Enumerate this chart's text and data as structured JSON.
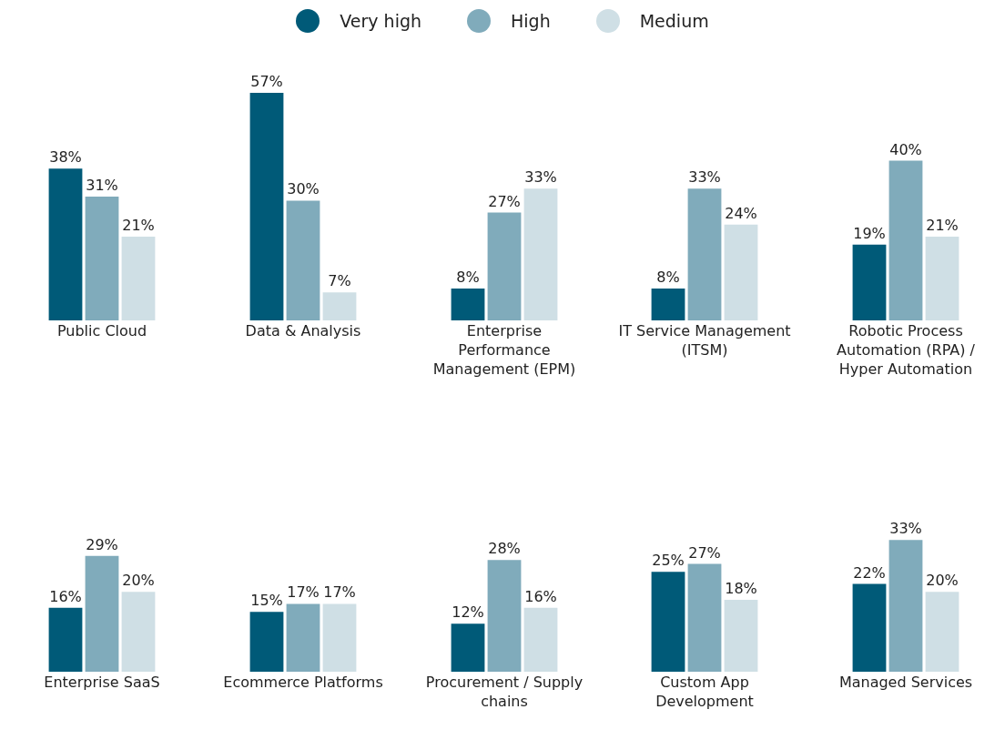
{
  "chart_data": [
    {
      "type": "bar",
      "categories": [
        "Public Cloud"
      ],
      "legend": "top",
      "series": [
        {
          "name": "Very high",
          "color": "#005a78",
          "values": [
            38
          ],
          "value_labels": [
            "38%"
          ]
        },
        {
          "name": "High",
          "color": "#80abbb",
          "values": [
            31
          ],
          "value_labels": [
            "31%"
          ]
        },
        {
          "name": "Medium",
          "color": "#cfdfe5",
          "values": [
            21
          ],
          "value_labels": [
            "21%"
          ]
        }
      ]
    },
    {
      "type": "bar",
      "categories": [
        "Data & Analysis"
      ],
      "series": [
        {
          "color": "#005a78",
          "values": [
            57
          ],
          "value_labels": [
            "57%"
          ]
        },
        {
          "color": "#80abbb",
          "values": [
            30
          ],
          "value_labels": [
            "30%"
          ]
        },
        {
          "color": "#cfdfe5",
          "values": [
            7
          ],
          "value_labels": [
            "7%"
          ]
        }
      ]
    },
    {
      "type": "bar",
      "categories": [
        "Enterprise Performance Management (EPM)"
      ],
      "series": [
        {
          "color": "#005a78",
          "values": [
            8
          ],
          "value_labels": [
            "8%"
          ]
        },
        {
          "color": "#80abbb",
          "values": [
            27
          ],
          "value_labels": [
            "27%"
          ]
        },
        {
          "color": "#cfdfe5",
          "values": [
            33
          ],
          "value_labels": [
            "33%"
          ]
        }
      ]
    },
    {
      "type": "bar",
      "categories": [
        "IT Service Management (ITSM)"
      ],
      "series": [
        {
          "color": "#005a78",
          "values": [
            8
          ],
          "value_labels": [
            "8%"
          ]
        },
        {
          "color": "#80abbb",
          "values": [
            33
          ],
          "value_labels": [
            "33%"
          ]
        },
        {
          "color": "#cfdfe5",
          "values": [
            24
          ],
          "value_labels": [
            "24%"
          ]
        }
      ]
    },
    {
      "type": "bar",
      "categories": [
        "Robotic Process Automation (RPA) / Hyper Automation"
      ],
      "series": [
        {
          "color": "#005a78",
          "values": [
            19
          ],
          "value_labels": [
            "19%"
          ]
        },
        {
          "color": "#80abbb",
          "values": [
            40
          ],
          "value_labels": [
            "40%"
          ]
        },
        {
          "color": "#cfdfe5",
          "values": [
            21
          ],
          "value_labels": [
            "21%"
          ]
        }
      ]
    },
    {
      "type": "bar",
      "categories": [
        "Enterprise SaaS"
      ],
      "series": [
        {
          "color": "#005a78",
          "values": [
            16
          ],
          "value_labels": [
            "16%"
          ]
        },
        {
          "color": "#80abbb",
          "values": [
            29
          ],
          "value_labels": [
            "29%"
          ]
        },
        {
          "color": "#cfdfe5",
          "values": [
            20
          ],
          "value_labels": [
            "20%"
          ]
        }
      ]
    },
    {
      "type": "bar",
      "categories": [
        "Ecommerce Platforms"
      ],
      "series": [
        {
          "color": "#005a78",
          "values": [
            15
          ],
          "value_labels": [
            "15%"
          ]
        },
        {
          "color": "#80abbb",
          "values": [
            17
          ],
          "value_labels": [
            "17%"
          ]
        },
        {
          "color": "#cfdfe5",
          "values": [
            17
          ],
          "value_labels": [
            "17%"
          ]
        }
      ]
    },
    {
      "type": "bar",
      "categories": [
        "Procurement / Supply chains"
      ],
      "series": [
        {
          "color": "#005a78",
          "values": [
            12
          ],
          "value_labels": [
            "12%"
          ]
        },
        {
          "color": "#80abbb",
          "values": [
            28
          ],
          "value_labels": [
            "28%"
          ]
        },
        {
          "color": "#cfdfe5",
          "values": [
            16
          ],
          "value_labels": [
            "16%"
          ]
        }
      ]
    },
    {
      "type": "bar",
      "categories": [
        "Custom App Development"
      ],
      "series": [
        {
          "color": "#005a78",
          "values": [
            25
          ],
          "value_labels": [
            "25%"
          ]
        },
        {
          "color": "#80abbb",
          "values": [
            27
          ],
          "value_labels": [
            "27%"
          ]
        },
        {
          "color": "#cfdfe5",
          "values": [
            18
          ],
          "value_labels": [
            "18%"
          ]
        }
      ]
    },
    {
      "type": "bar",
      "categories": [
        "Managed Services"
      ],
      "series": [
        {
          "color": "#005a78",
          "values": [
            22
          ],
          "value_labels": [
            "22%"
          ]
        },
        {
          "color": "#80abbb",
          "values": [
            33
          ],
          "value_labels": [
            "33%"
          ]
        },
        {
          "color": "#cfdfe5",
          "values": [
            20
          ],
          "value_labels": [
            "20%"
          ]
        }
      ]
    }
  ]
}
